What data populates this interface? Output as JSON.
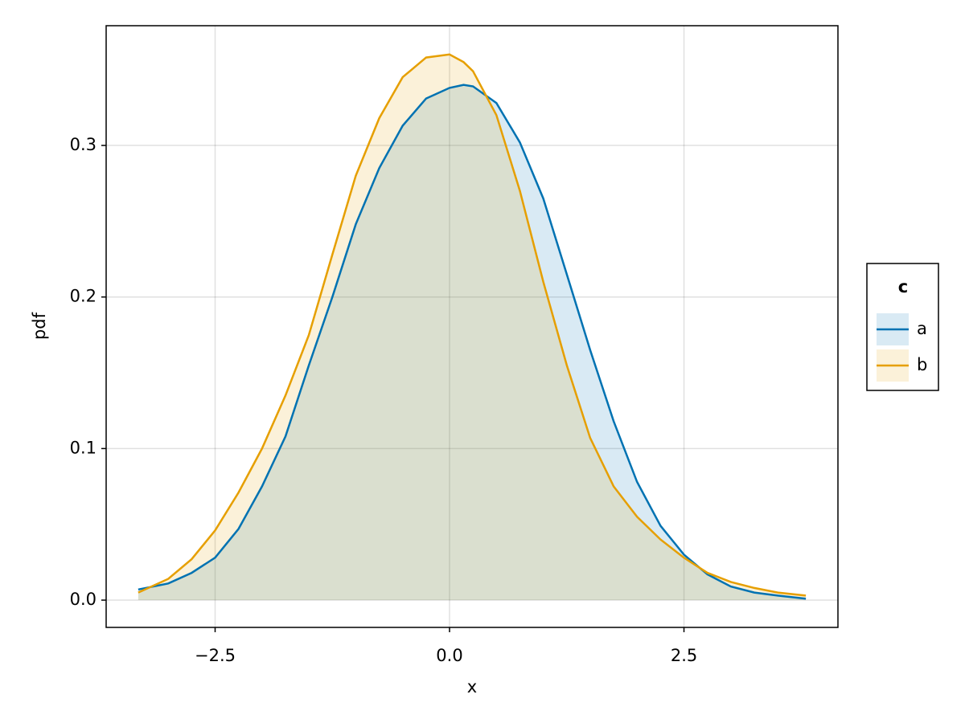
{
  "chart_data": {
    "type": "density",
    "x_label": "x",
    "y_label": "pdf",
    "x": [
      -3.32,
      -3.0,
      -2.75,
      -2.5,
      -2.25,
      -2.0,
      -1.75,
      -1.5,
      -1.25,
      -1.0,
      -0.75,
      -0.5,
      -0.25,
      0.0,
      0.15,
      0.25,
      0.5,
      0.75,
      1.0,
      1.25,
      1.5,
      1.75,
      2.0,
      2.25,
      2.5,
      2.75,
      3.0,
      3.25,
      3.5,
      3.8
    ],
    "series": [
      {
        "name": "a",
        "color": "#0072b2",
        "values": [
          0.007,
          0.011,
          0.018,
          0.028,
          0.047,
          0.075,
          0.108,
          0.155,
          0.2,
          0.248,
          0.285,
          0.313,
          0.331,
          0.338,
          0.34,
          0.339,
          0.328,
          0.302,
          0.265,
          0.215,
          0.165,
          0.118,
          0.078,
          0.049,
          0.03,
          0.017,
          0.009,
          0.005,
          0.003,
          0.001
        ]
      },
      {
        "name": "b",
        "color": "#e69f00",
        "values": [
          0.005,
          0.014,
          0.027,
          0.046,
          0.071,
          0.1,
          0.135,
          0.175,
          0.228,
          0.28,
          0.318,
          0.345,
          0.358,
          0.36,
          0.355,
          0.349,
          0.32,
          0.27,
          0.21,
          0.155,
          0.107,
          0.075,
          0.055,
          0.04,
          0.028,
          0.018,
          0.012,
          0.008,
          0.005,
          0.003
        ]
      }
    ],
    "xlim": [
      -3.662,
      4.142
    ],
    "xticks": [
      {
        "value": -2.5,
        "label": "−2.5"
      },
      {
        "value": 0,
        "label": "0.0"
      },
      2.5
    ],
    "ylim": [
      -0.018,
      0.379
    ],
    "yticks": [
      {
        "value": 0,
        "label": "0.0"
      },
      0.1,
      0.2,
      0.3
    ],
    "grid": true,
    "legend": {
      "title": "c",
      "position": "right"
    }
  }
}
